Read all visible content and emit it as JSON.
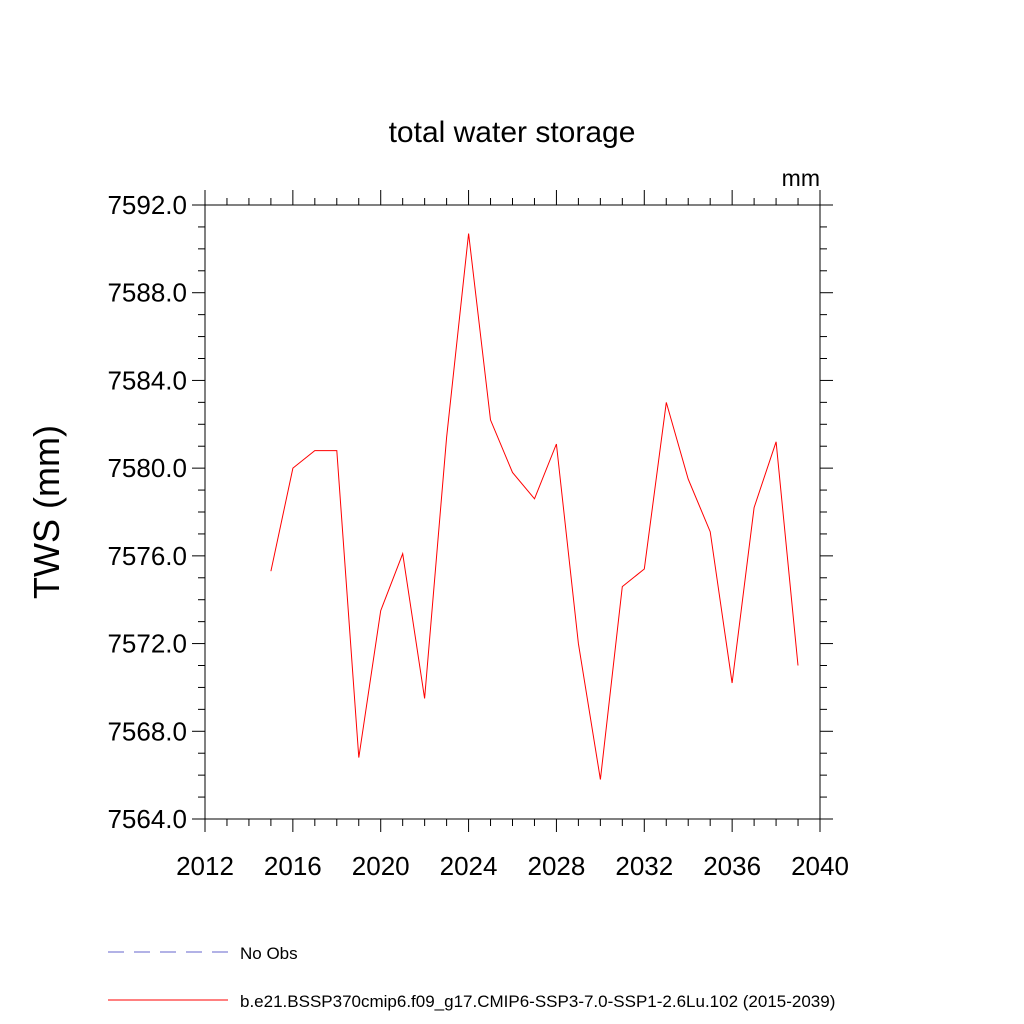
{
  "chart_data": {
    "type": "line",
    "title": "total water storage",
    "units_label": "mm",
    "ylabel": "TWS  (mm)",
    "xlabel": "",
    "xlim": [
      2012,
      2040
    ],
    "ylim": [
      7564,
      7592
    ],
    "x_ticks": [
      "2012",
      "2016",
      "2020",
      "2024",
      "2028",
      "2032",
      "2036",
      "2040"
    ],
    "y_ticks": [
      "7564.0",
      "7568.0",
      "7572.0",
      "7576.0",
      "7580.0",
      "7584.0",
      "7588.0",
      "7592.0"
    ],
    "grid": false,
    "series": [
      {
        "name": "b.e21.BSSP370cmip6.f09_g17.CMIP6-SSP3-7.0-SSP1-2.6Lu.102 (2015-2039)",
        "color": "#ff0000",
        "x": [
          2015,
          2016,
          2017,
          2018,
          2019,
          2020,
          2021,
          2022,
          2023,
          2024,
          2025,
          2026,
          2027,
          2028,
          2029,
          2030,
          2031,
          2032,
          2033,
          2034,
          2035,
          2036,
          2037,
          2038,
          2039
        ],
        "values": [
          7575.3,
          7580.0,
          7580.8,
          7580.8,
          7566.8,
          7573.5,
          7576.1,
          7569.5,
          7581.4,
          7590.7,
          7582.2,
          7579.8,
          7578.6,
          7581.1,
          7572.0,
          7565.8,
          7574.6,
          7575.4,
          7583.0,
          7579.5,
          7577.1,
          7570.2,
          7578.2,
          7581.2,
          7571.0
        ]
      }
    ],
    "legend": {
      "position": "bottom",
      "entries": [
        {
          "label": "No Obs",
          "color": "#6666cc",
          "style": "dashed"
        },
        {
          "label": "b.e21.BSSP370cmip6.f09_g17.CMIP6-SSP3-7.0-SSP1-2.6Lu.102 (2015-2039)",
          "color": "#ff0000",
          "style": "solid"
        }
      ]
    }
  }
}
